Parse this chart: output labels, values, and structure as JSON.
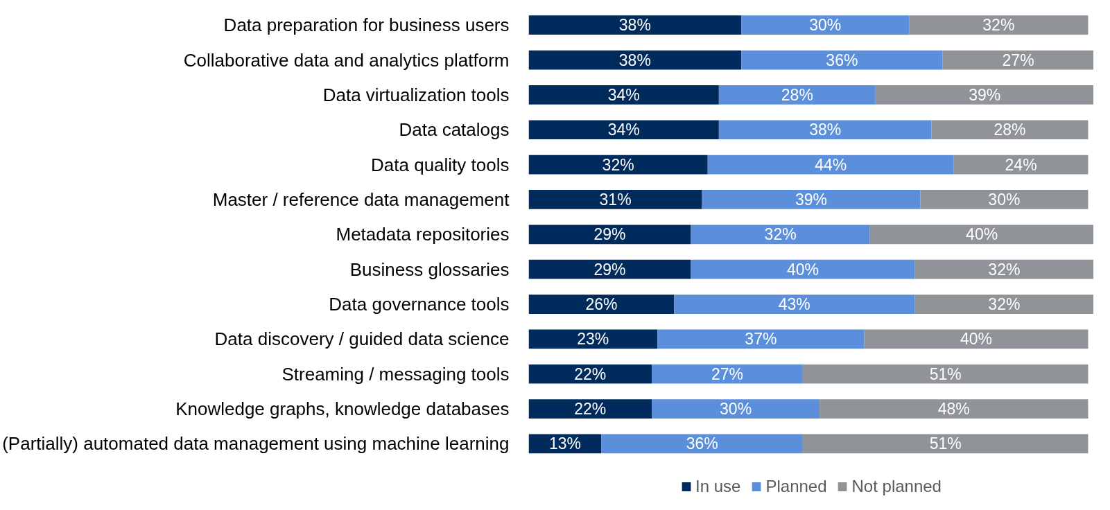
{
  "chart_data": {
    "type": "bar",
    "orientation": "horizontal",
    "stacked": true,
    "tick_labels": "y",
    "grid": false,
    "legend": "bottom",
    "categories": [
      "Data preparation for business users",
      "Collaborative data and analytics platform",
      "Data virtualization tools",
      "Data catalogs",
      "Data quality tools",
      "Master / reference data management",
      "Metadata repositories",
      "Business glossaries",
      "Data governance tools",
      "Data discovery / guided data science",
      "Streaming / messaging tools",
      "Knowledge graphs, knowledge databases",
      "(Partially) automated data management using machine learning"
    ],
    "series": [
      {
        "name": "In use",
        "color": "#002b5c",
        "values": [
          38,
          38,
          34,
          34,
          32,
          31,
          29,
          29,
          26,
          23,
          22,
          22,
          13
        ],
        "value_labels": [
          "38%",
          "38%",
          "34%",
          "34%",
          "32%",
          "31%",
          "29%",
          "29%",
          "26%",
          "23%",
          "22%",
          "22%",
          "13%"
        ]
      },
      {
        "name": "Planned",
        "color": "#5b8fdc",
        "values": [
          30,
          36,
          28,
          38,
          44,
          39,
          32,
          40,
          43,
          37,
          27,
          30,
          36
        ],
        "value_labels": [
          "30%",
          "36%",
          "28%",
          "38%",
          "44%",
          "39%",
          "32%",
          "40%",
          "43%",
          "37%",
          "27%",
          "30%",
          "36%"
        ]
      },
      {
        "name": "Not planned",
        "color": "#909398",
        "values": [
          32,
          27,
          39,
          28,
          24,
          30,
          40,
          32,
          32,
          40,
          51,
          48,
          51
        ],
        "value_labels": [
          "32%",
          "27%",
          "39%",
          "28%",
          "24%",
          "30%",
          "40%",
          "32%",
          "32%",
          "40%",
          "51%",
          "48%",
          "51%"
        ]
      }
    ]
  }
}
